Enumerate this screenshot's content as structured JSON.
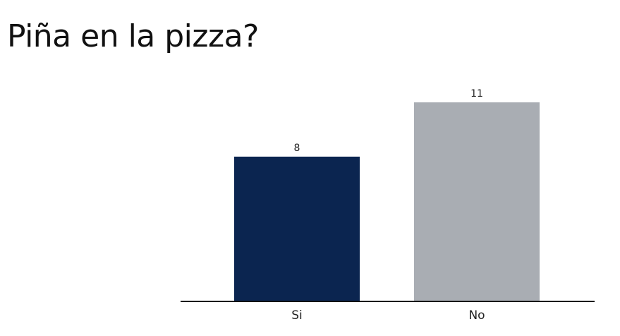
{
  "chart_data": {
    "type": "bar",
    "title": "Piña en la pizza?",
    "categories": [
      "Si",
      "No"
    ],
    "values": [
      8,
      11
    ],
    "value_labels": [
      "8",
      "11"
    ],
    "colors": [
      "#0b2550",
      "#a9adb3"
    ],
    "xlabel": "",
    "ylabel": "",
    "ylim": [
      0,
      11
    ],
    "grid": false,
    "legend": "none"
  }
}
